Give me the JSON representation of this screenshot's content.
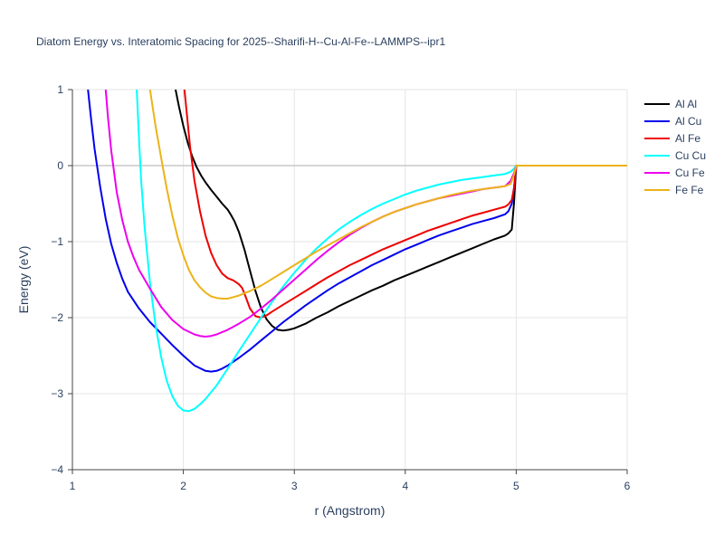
{
  "chart_data": {
    "type": "line",
    "title": "Diatom Energy vs. Interatomic Spacing for 2025--Sharifi-H--Cu-Al-Fe--LAMMPS--ipr1",
    "xlabel": "r (Angstrom)",
    "ylabel": "Energy (eV)",
    "xlim": [
      1,
      6
    ],
    "ylim": [
      -4,
      1
    ],
    "xticks": [
      1,
      2,
      3,
      4,
      5,
      6
    ],
    "xtick_labels": [
      "1",
      "2",
      "3",
      "4",
      "5",
      "6"
    ],
    "yticks": [
      -4,
      -3,
      -2,
      -1,
      0,
      1
    ],
    "ytick_labels": [
      "−4",
      "−3",
      "−2",
      "−1",
      "0",
      "1"
    ],
    "grid": true,
    "legend_position": "top-right",
    "series": [
      {
        "name": "Al Al",
        "color": "#000000",
        "x": [
          1.93,
          1.96,
          2.0,
          2.04,
          2.08,
          2.12,
          2.16,
          2.2,
          2.25,
          2.3,
          2.35,
          2.4,
          2.43,
          2.46,
          2.5,
          2.55,
          2.6,
          2.65,
          2.7,
          2.75,
          2.8,
          2.85,
          2.9,
          2.95,
          3.0,
          3.1,
          3.2,
          3.3,
          3.4,
          3.5,
          3.6,
          3.7,
          3.8,
          3.9,
          4.0,
          4.1,
          4.2,
          4.3,
          4.4,
          4.5,
          4.6,
          4.7,
          4.8,
          4.9,
          4.93,
          4.96,
          4.98,
          5.0,
          5.5,
          6.0
        ],
        "y": [
          1.0,
          0.78,
          0.52,
          0.3,
          0.12,
          -0.02,
          -0.13,
          -0.22,
          -0.32,
          -0.41,
          -0.5,
          -0.58,
          -0.65,
          -0.73,
          -0.87,
          -1.1,
          -1.38,
          -1.65,
          -1.87,
          -2.02,
          -2.11,
          -2.16,
          -2.17,
          -2.16,
          -2.14,
          -2.08,
          -2.0,
          -1.93,
          -1.85,
          -1.78,
          -1.71,
          -1.64,
          -1.58,
          -1.51,
          -1.45,
          -1.39,
          -1.33,
          -1.27,
          -1.21,
          -1.15,
          -1.09,
          -1.03,
          -0.97,
          -0.92,
          -0.89,
          -0.84,
          -0.5,
          0.0,
          0.0,
          0.0
        ]
      },
      {
        "name": "Al Cu",
        "color": "#0000ee",
        "x": [
          1.14,
          1.17,
          1.2,
          1.25,
          1.3,
          1.35,
          1.4,
          1.45,
          1.5,
          1.6,
          1.7,
          1.8,
          1.9,
          2.0,
          2.1,
          2.2,
          2.25,
          2.3,
          2.35,
          2.4,
          2.5,
          2.6,
          2.7,
          2.8,
          2.9,
          3.0,
          3.1,
          3.2,
          3.3,
          3.4,
          3.5,
          3.6,
          3.7,
          3.8,
          3.9,
          4.0,
          4.1,
          4.2,
          4.3,
          4.4,
          4.5,
          4.6,
          4.7,
          4.8,
          4.9,
          4.93,
          4.96,
          4.98,
          5.0
        ],
        "y": [
          1.0,
          0.6,
          0.22,
          -0.28,
          -0.7,
          -1.03,
          -1.28,
          -1.49,
          -1.66,
          -1.88,
          -2.06,
          -2.21,
          -2.36,
          -2.5,
          -2.63,
          -2.7,
          -2.71,
          -2.7,
          -2.67,
          -2.63,
          -2.53,
          -2.42,
          -2.3,
          -2.18,
          -2.06,
          -1.95,
          -1.84,
          -1.74,
          -1.64,
          -1.55,
          -1.47,
          -1.39,
          -1.31,
          -1.24,
          -1.17,
          -1.1,
          -1.04,
          -0.98,
          -0.92,
          -0.87,
          -0.82,
          -0.77,
          -0.73,
          -0.69,
          -0.64,
          -0.6,
          -0.5,
          -0.3,
          0.0
        ]
      },
      {
        "name": "Al Fe",
        "color": "#ee0000",
        "x": [
          2.01,
          2.03,
          2.06,
          2.1,
          2.15,
          2.2,
          2.25,
          2.3,
          2.35,
          2.4,
          2.45,
          2.5,
          2.53,
          2.56,
          2.6,
          2.65,
          2.7,
          2.75,
          2.8,
          2.9,
          3.0,
          3.1,
          3.2,
          3.3,
          3.4,
          3.5,
          3.6,
          3.7,
          3.8,
          3.9,
          4.0,
          4.1,
          4.2,
          4.3,
          4.4,
          4.5,
          4.6,
          4.7,
          4.8,
          4.9,
          4.93,
          4.96,
          4.98,
          5.0
        ],
        "y": [
          1.0,
          0.7,
          0.25,
          -0.2,
          -0.6,
          -0.92,
          -1.15,
          -1.31,
          -1.42,
          -1.48,
          -1.51,
          -1.56,
          -1.61,
          -1.72,
          -1.88,
          -1.98,
          -2.0,
          -1.97,
          -1.92,
          -1.83,
          -1.74,
          -1.65,
          -1.56,
          -1.47,
          -1.39,
          -1.31,
          -1.24,
          -1.17,
          -1.1,
          -1.04,
          -0.98,
          -0.92,
          -0.86,
          -0.81,
          -0.76,
          -0.71,
          -0.66,
          -0.62,
          -0.58,
          -0.54,
          -0.51,
          -0.45,
          -0.3,
          0.0
        ]
      },
      {
        "name": "Cu Cu",
        "color": "#00ffff",
        "x": [
          1.58,
          1.6,
          1.62,
          1.65,
          1.7,
          1.75,
          1.8,
          1.85,
          1.9,
          1.95,
          2.0,
          2.05,
          2.1,
          2.15,
          2.2,
          2.3,
          2.4,
          2.5,
          2.6,
          2.7,
          2.8,
          2.9,
          3.0,
          3.1,
          3.2,
          3.3,
          3.4,
          3.5,
          3.6,
          3.7,
          3.8,
          3.9,
          4.0,
          4.1,
          4.2,
          4.3,
          4.4,
          4.5,
          4.6,
          4.7,
          4.8,
          4.9,
          4.95,
          4.98,
          5.0
        ],
        "y": [
          1.0,
          0.35,
          -0.2,
          -0.8,
          -1.55,
          -2.1,
          -2.52,
          -2.83,
          -3.03,
          -3.16,
          -3.22,
          -3.23,
          -3.2,
          -3.14,
          -3.07,
          -2.89,
          -2.67,
          -2.44,
          -2.22,
          -2.0,
          -1.79,
          -1.59,
          -1.41,
          -1.24,
          -1.09,
          -0.96,
          -0.84,
          -0.74,
          -0.65,
          -0.57,
          -0.5,
          -0.44,
          -0.38,
          -0.33,
          -0.29,
          -0.25,
          -0.22,
          -0.19,
          -0.17,
          -0.15,
          -0.13,
          -0.11,
          -0.08,
          -0.04,
          0.0
        ]
      },
      {
        "name": "Cu Fe",
        "color": "#ee00ee",
        "x": [
          1.3,
          1.32,
          1.35,
          1.4,
          1.45,
          1.5,
          1.55,
          1.6,
          1.7,
          1.8,
          1.9,
          2.0,
          2.1,
          2.15,
          2.2,
          2.25,
          2.3,
          2.4,
          2.5,
          2.6,
          2.7,
          2.8,
          2.9,
          3.0,
          3.1,
          3.2,
          3.3,
          3.4,
          3.5,
          3.6,
          3.7,
          3.8,
          3.9,
          4.0,
          4.1,
          4.2,
          4.3,
          4.4,
          4.5,
          4.6,
          4.7,
          4.8,
          4.9,
          4.95,
          4.98,
          5.0
        ],
        "y": [
          1.0,
          0.65,
          0.2,
          -0.35,
          -0.72,
          -1.0,
          -1.2,
          -1.37,
          -1.62,
          -1.86,
          -2.03,
          -2.15,
          -2.22,
          -2.24,
          -2.25,
          -2.24,
          -2.22,
          -2.16,
          -2.08,
          -1.99,
          -1.88,
          -1.76,
          -1.63,
          -1.5,
          -1.37,
          -1.24,
          -1.12,
          -1.01,
          -0.91,
          -0.82,
          -0.74,
          -0.67,
          -0.61,
          -0.56,
          -0.51,
          -0.47,
          -0.43,
          -0.4,
          -0.37,
          -0.34,
          -0.31,
          -0.29,
          -0.27,
          -0.2,
          -0.1,
          0.0
        ]
      },
      {
        "name": "Fe Fe",
        "color": "#ecb319",
        "x": [
          1.7,
          1.72,
          1.75,
          1.8,
          1.85,
          1.9,
          1.95,
          2.0,
          2.05,
          2.1,
          2.15,
          2.2,
          2.25,
          2.3,
          2.35,
          2.4,
          2.45,
          2.5,
          2.6,
          2.7,
          2.8,
          2.9,
          3.0,
          3.1,
          3.2,
          3.3,
          3.4,
          3.5,
          3.6,
          3.7,
          3.8,
          3.9,
          4.0,
          4.1,
          4.2,
          4.3,
          4.4,
          4.5,
          4.6,
          4.7,
          4.8,
          4.9,
          4.95,
          4.98,
          5.0,
          5.5,
          6.0
        ],
        "y": [
          1.0,
          0.8,
          0.52,
          0.1,
          -0.3,
          -0.65,
          -0.95,
          -1.18,
          -1.37,
          -1.51,
          -1.6,
          -1.67,
          -1.72,
          -1.74,
          -1.75,
          -1.75,
          -1.73,
          -1.71,
          -1.65,
          -1.58,
          -1.49,
          -1.4,
          -1.31,
          -1.22,
          -1.13,
          -1.05,
          -0.97,
          -0.89,
          -0.81,
          -0.74,
          -0.67,
          -0.61,
          -0.56,
          -0.51,
          -0.47,
          -0.43,
          -0.39,
          -0.36,
          -0.33,
          -0.31,
          -0.29,
          -0.27,
          -0.24,
          -0.12,
          0.0,
          0.0,
          0.0
        ]
      }
    ]
  }
}
